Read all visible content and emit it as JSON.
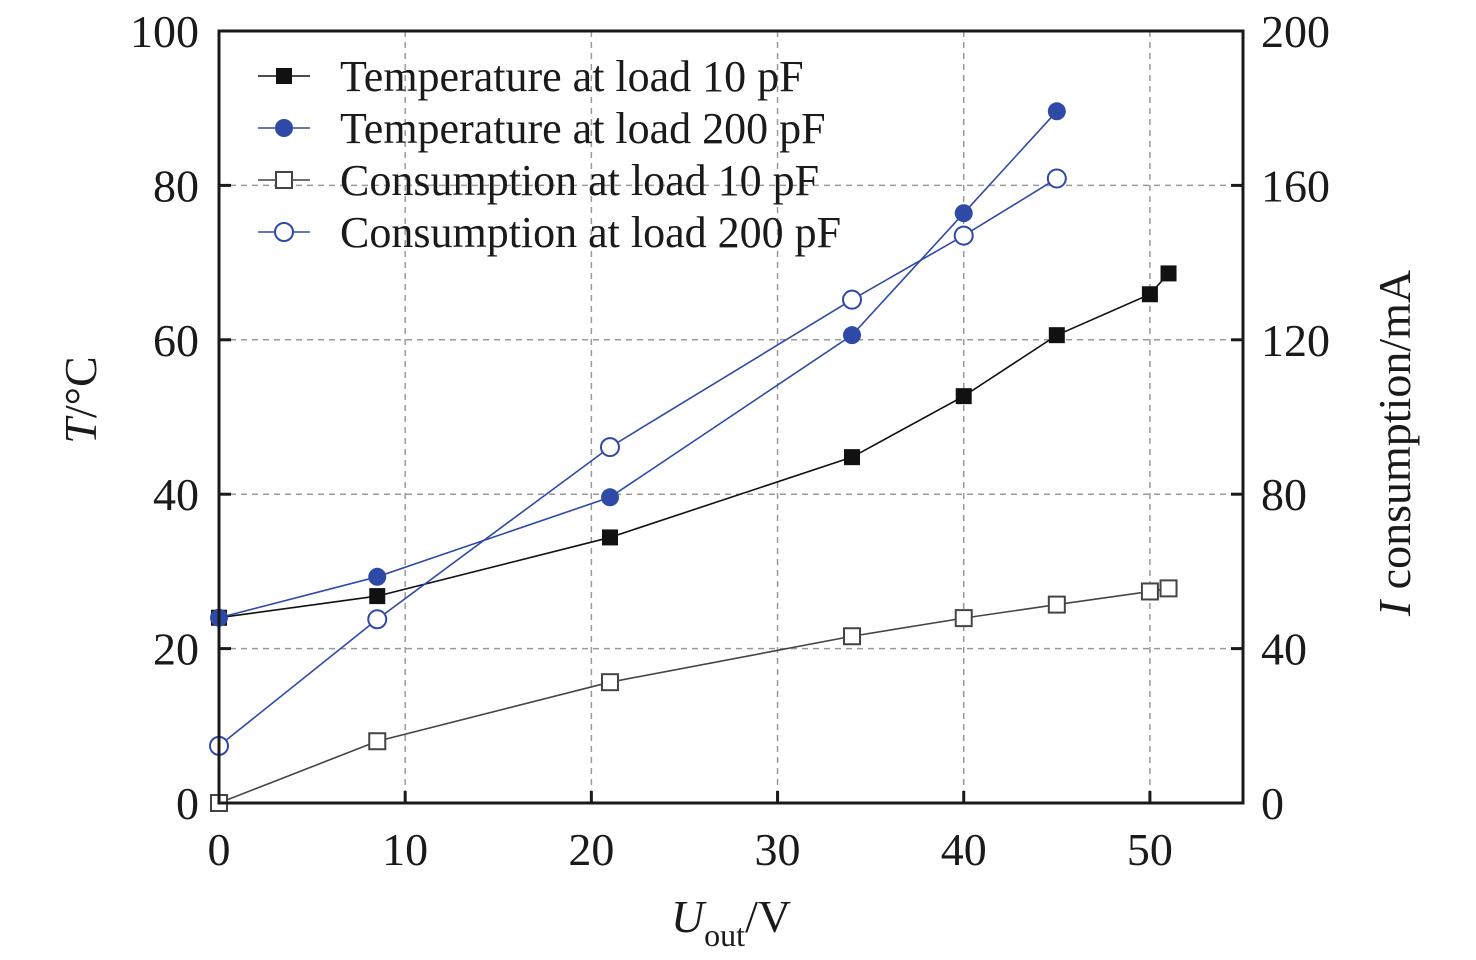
{
  "chart_data": {
    "type": "line",
    "title": "",
    "xlabel": "U_out/V",
    "xlabel_main": "U",
    "xlabel_sub": "out",
    "xlabel_suffix": "/V",
    "ylabel": "T/°C",
    "ylabel_italic": "T",
    "ylabel_suffix": "/°C",
    "y2label": "I consumption/mA",
    "y2label_italic": "I",
    "y2label_suffix": " consumption/mA",
    "xlim": [
      0,
      55
    ],
    "ylim": [
      0,
      100
    ],
    "y2lim": [
      0,
      200
    ],
    "xticks": [
      0,
      10,
      20,
      30,
      40,
      50
    ],
    "yticks": [
      0,
      20,
      40,
      60,
      80,
      100
    ],
    "y2ticks": [
      0,
      40,
      80,
      120,
      160,
      200
    ],
    "grid": true,
    "legend_position": "top-left",
    "series": [
      {
        "name": "Temperature at load 10 pF",
        "axis": "left",
        "marker": "filled-square",
        "color": "#111111",
        "x": [
          0,
          8.5,
          21,
          34,
          40,
          45,
          50,
          51
        ],
        "y": [
          24.0,
          26.8,
          34.4,
          44.8,
          52.7,
          60.6,
          65.9,
          68.6
        ]
      },
      {
        "name": "Temperature at load 200 pF",
        "axis": "left",
        "marker": "filled-circle",
        "color": "#2e4aa6",
        "x": [
          0,
          8.5,
          21,
          34,
          40,
          45
        ],
        "y": [
          24.0,
          29.3,
          39.6,
          60.6,
          76.4,
          89.6
        ]
      },
      {
        "name": "Consumption at load 10 pF",
        "axis": "right",
        "marker": "open-square",
        "color": "#444444",
        "x": [
          0,
          8.5,
          21,
          34,
          40,
          45,
          50,
          51
        ],
        "y": [
          0,
          16.0,
          31.3,
          43.2,
          47.9,
          51.4,
          54.8,
          55.6
        ]
      },
      {
        "name": "Consumption at load 200 pF",
        "axis": "right",
        "marker": "open-circle",
        "color": "#2e4aa6",
        "x": [
          0,
          8.5,
          21,
          34,
          40,
          45
        ],
        "y": [
          14.8,
          47.6,
          92.2,
          130.4,
          147.0,
          161.8
        ]
      }
    ]
  }
}
